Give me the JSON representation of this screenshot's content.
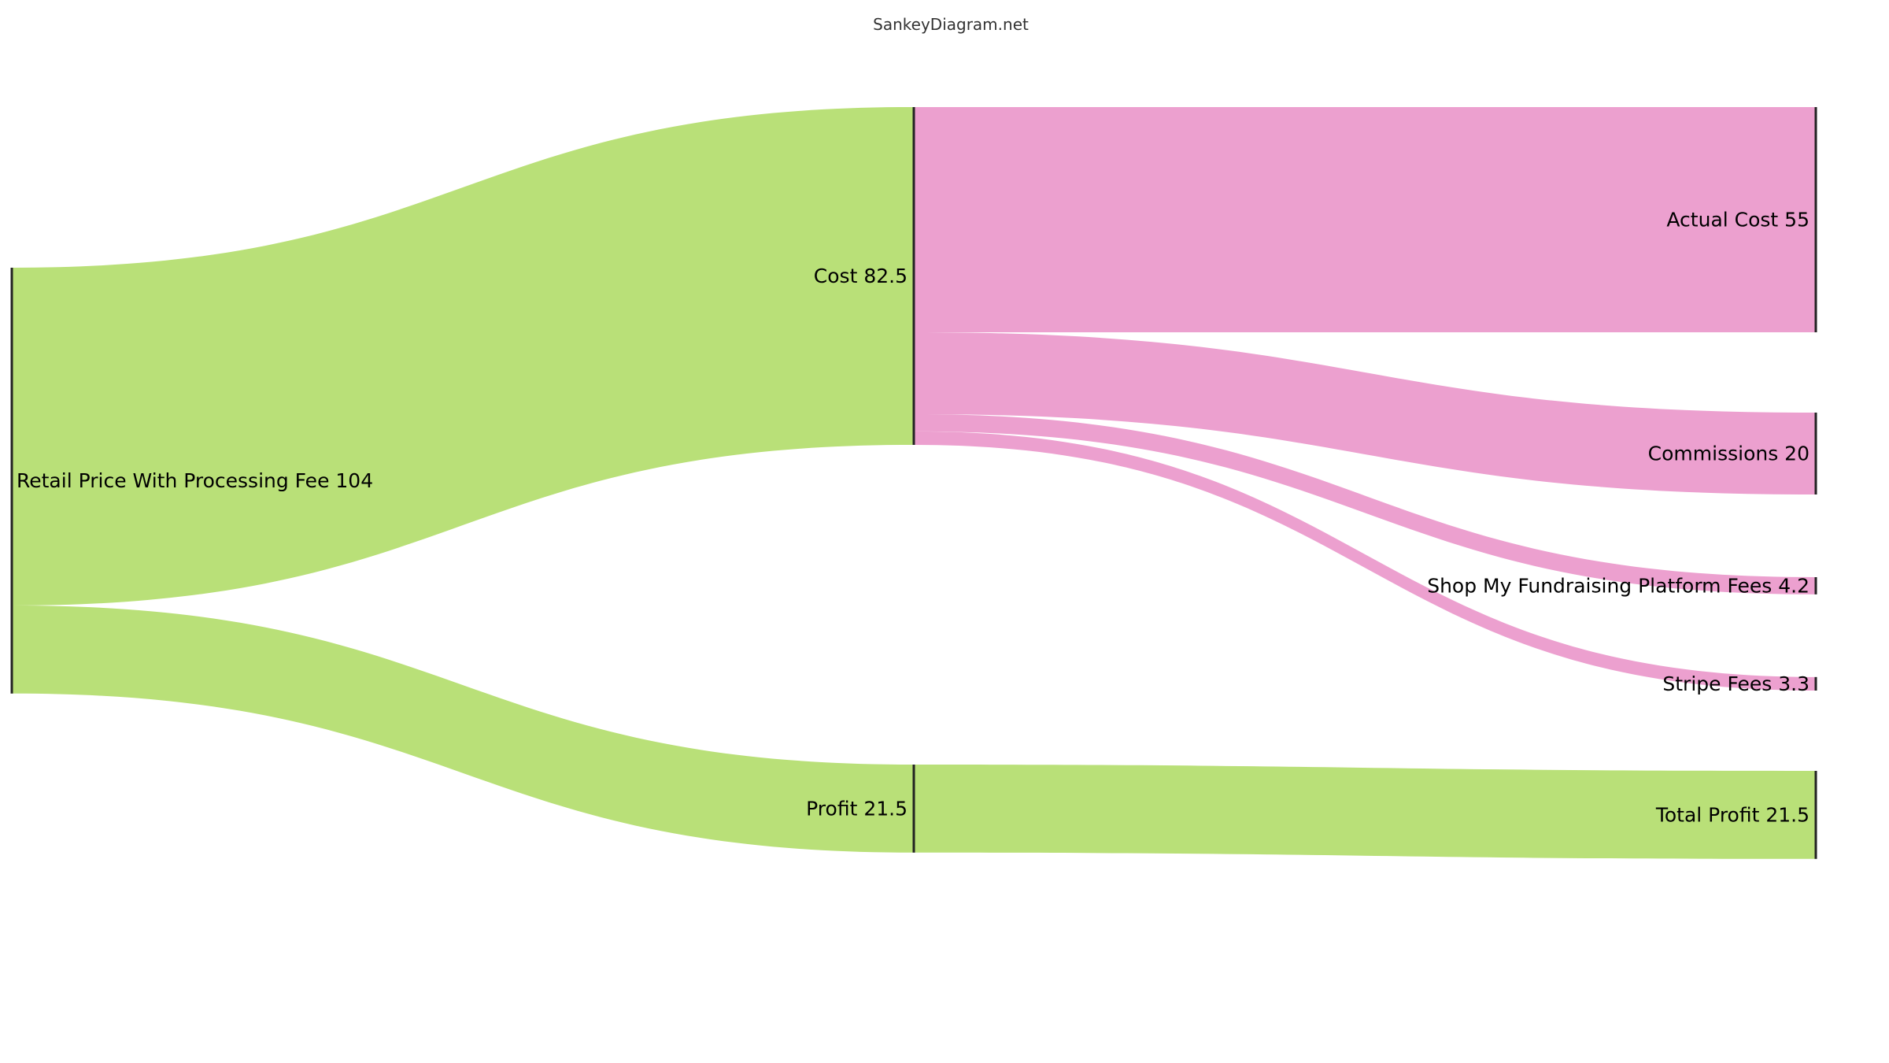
{
  "page": {
    "site_title": "SankeyDiagram.net"
  },
  "colors": {
    "green": "#b9e078",
    "pink": "#eca0cf",
    "node_bar": "#222222",
    "background": "#ffffff"
  },
  "diagram": {
    "nodes": [
      {
        "id": "retail",
        "name": "Retail Price With Processing Fee",
        "value": 104,
        "label": "Retail Price With Processing Fee 104",
        "column": 0
      },
      {
        "id": "cost",
        "name": "Cost",
        "value": 82.5,
        "label": "Cost 82.5",
        "column": 1
      },
      {
        "id": "profit",
        "name": "Profit",
        "value": 21.5,
        "label": "Profit 21.5",
        "column": 1
      },
      {
        "id": "actual_cost",
        "name": "Actual Cost",
        "value": 55,
        "label": "Actual Cost 55",
        "column": 2
      },
      {
        "id": "commissions",
        "name": "Commissions",
        "value": 20,
        "label": "Commissions 20",
        "column": 2
      },
      {
        "id": "platform_fees",
        "name": "Shop My Fundraising Platform Fees",
        "value": 4.2,
        "label": "Shop My Fundraising Platform Fees 4.2",
        "column": 2
      },
      {
        "id": "stripe_fees",
        "name": "Stripe Fees",
        "value": 3.3,
        "label": "Stripe Fees 3.3",
        "column": 2
      },
      {
        "id": "total_profit",
        "name": "Total Profit",
        "value": 21.5,
        "label": "Total Profit 21.5",
        "column": 2
      }
    ],
    "links": [
      {
        "source": "retail",
        "target": "cost",
        "value": 82.5,
        "color": "green"
      },
      {
        "source": "retail",
        "target": "profit",
        "value": 21.5,
        "color": "green"
      },
      {
        "source": "cost",
        "target": "actual_cost",
        "value": 55,
        "color": "pink"
      },
      {
        "source": "cost",
        "target": "commissions",
        "value": 20,
        "color": "pink"
      },
      {
        "source": "cost",
        "target": "platform_fees",
        "value": 4.2,
        "color": "pink"
      },
      {
        "source": "cost",
        "target": "stripe_fees",
        "value": 3.3,
        "color": "pink"
      },
      {
        "source": "profit",
        "target": "total_profit",
        "value": 21.5,
        "color": "green"
      }
    ]
  }
}
